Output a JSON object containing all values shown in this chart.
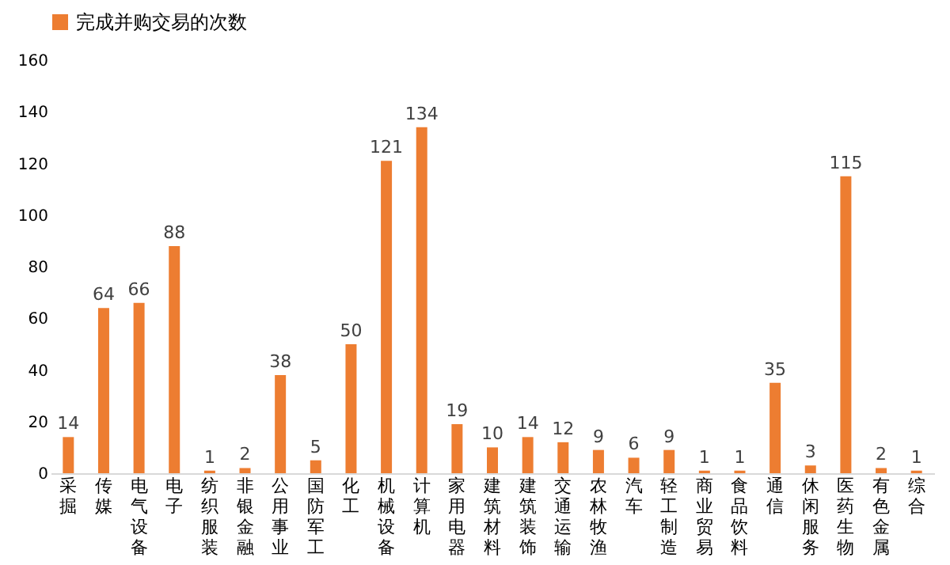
{
  "chart_data": {
    "type": "bar",
    "categories": [
      "采掘",
      "传媒",
      "电气设备",
      "电子",
      "纺织服装",
      "非银金融",
      "公用事业",
      "国防军工",
      "化工",
      "机械设备",
      "计算机",
      "家用电器",
      "建筑材料",
      "建筑装饰",
      "交通运输",
      "农林牧渔",
      "汽车",
      "轻工制造",
      "商业贸易",
      "食品饮料",
      "通信",
      "休闲服务",
      "医药生物",
      "有色金属",
      "综合"
    ],
    "series": [
      {
        "name": "完成并购交易的次数",
        "color": "#ed7d31",
        "values": [
          14,
          64,
          66,
          88,
          1,
          2,
          38,
          5,
          50,
          121,
          134,
          19,
          10,
          14,
          12,
          9,
          6,
          9,
          1,
          1,
          35,
          3,
          115,
          2,
          1
        ]
      }
    ],
    "ylim": [
      0,
      160
    ],
    "yticks": [
      0,
      20,
      40,
      60,
      80,
      100,
      120,
      140,
      160
    ],
    "grid": false,
    "legend": "top",
    "data_labels": true
  }
}
